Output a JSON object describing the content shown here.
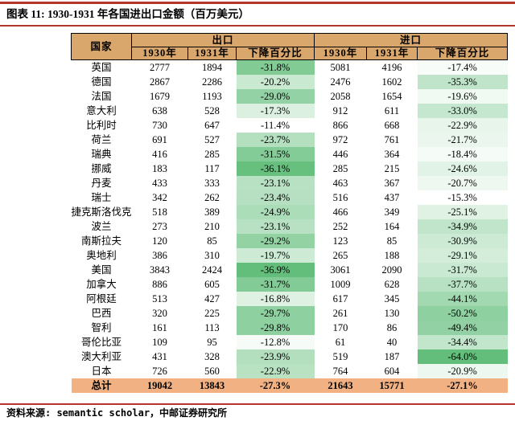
{
  "title": "图表 11: 1930-1931 年各国进出口金额（百万美元）",
  "source": "资料来源: semantic scholar，中邮证券研究所",
  "chart_data": {
    "type": "table",
    "title": "1930-1931 年各国进出口金额（百万美元）",
    "country_header": "国家",
    "group_headers": {
      "export": "出口",
      "import": "进口"
    },
    "sub_headers": [
      "1930年",
      "1931年",
      "下降百分比"
    ],
    "rows": [
      {
        "country": "英国",
        "export_1930": 2777,
        "export_1931": 1894,
        "export_pct": "-31.8%",
        "import_1930": 5081,
        "import_1931": 4196,
        "import_pct": "-17.4%"
      },
      {
        "country": "德国",
        "export_1930": 2867,
        "export_1931": 2286,
        "export_pct": "-20.2%",
        "import_1930": 2476,
        "import_1931": 1602,
        "import_pct": "-35.3%"
      },
      {
        "country": "法国",
        "export_1930": 1679,
        "export_1931": 1193,
        "export_pct": "-29.0%",
        "import_1930": 2058,
        "import_1931": 1654,
        "import_pct": "-19.6%"
      },
      {
        "country": "意大利",
        "export_1930": 638,
        "export_1931": 528,
        "export_pct": "-17.3%",
        "import_1930": 912,
        "import_1931": 611,
        "import_pct": "-33.0%"
      },
      {
        "country": "比利时",
        "export_1930": 730,
        "export_1931": 647,
        "export_pct": "-11.4%",
        "import_1930": 866,
        "import_1931": 668,
        "import_pct": "-22.9%"
      },
      {
        "country": "荷兰",
        "export_1930": 691,
        "export_1931": 527,
        "export_pct": "-23.7%",
        "import_1930": 972,
        "import_1931": 761,
        "import_pct": "-21.7%"
      },
      {
        "country": "瑞典",
        "export_1930": 416,
        "export_1931": 285,
        "export_pct": "-31.5%",
        "import_1930": 446,
        "import_1931": 364,
        "import_pct": "-18.4%"
      },
      {
        "country": "挪威",
        "export_1930": 183,
        "export_1931": 117,
        "export_pct": "-36.1%",
        "import_1930": 285,
        "import_1931": 215,
        "import_pct": "-24.6%"
      },
      {
        "country": "丹麦",
        "export_1930": 433,
        "export_1931": 333,
        "export_pct": "-23.1%",
        "import_1930": 463,
        "import_1931": 367,
        "import_pct": "-20.7%"
      },
      {
        "country": "瑞士",
        "export_1930": 342,
        "export_1931": 262,
        "export_pct": "-23.4%",
        "import_1930": 516,
        "import_1931": 437,
        "import_pct": "-15.3%"
      },
      {
        "country": "捷克斯洛伐克",
        "export_1930": 518,
        "export_1931": 389,
        "export_pct": "-24.9%",
        "import_1930": 466,
        "import_1931": 349,
        "import_pct": "-25.1%"
      },
      {
        "country": "波兰",
        "export_1930": 273,
        "export_1931": 210,
        "export_pct": "-23.1%",
        "import_1930": 252,
        "import_1931": 164,
        "import_pct": "-34.9%"
      },
      {
        "country": "南斯拉夫",
        "export_1930": 120,
        "export_1931": 85,
        "export_pct": "-29.2%",
        "import_1930": 123,
        "import_1931": 85,
        "import_pct": "-30.9%"
      },
      {
        "country": "奥地利",
        "export_1930": 386,
        "export_1931": 310,
        "export_pct": "-19.7%",
        "import_1930": 265,
        "import_1931": 188,
        "import_pct": "-29.1%"
      },
      {
        "country": "美国",
        "export_1930": 3843,
        "export_1931": 2424,
        "export_pct": "-36.9%",
        "import_1930": 3061,
        "import_1931": 2090,
        "import_pct": "-31.7%"
      },
      {
        "country": "加拿大",
        "export_1930": 886,
        "export_1931": 605,
        "export_pct": "-31.7%",
        "import_1930": 1009,
        "import_1931": 628,
        "import_pct": "-37.7%"
      },
      {
        "country": "阿根廷",
        "export_1930": 513,
        "export_1931": 427,
        "export_pct": "-16.8%",
        "import_1930": 617,
        "import_1931": 345,
        "import_pct": "-44.1%"
      },
      {
        "country": "巴西",
        "export_1930": 320,
        "export_1931": 225,
        "export_pct": "-29.7%",
        "import_1930": 261,
        "import_1931": 130,
        "import_pct": "-50.2%"
      },
      {
        "country": "智利",
        "export_1930": 161,
        "export_1931": 113,
        "export_pct": "-29.8%",
        "import_1930": 170,
        "import_1931": 86,
        "import_pct": "-49.4%"
      },
      {
        "country": "哥伦比亚",
        "export_1930": 109,
        "export_1931": 95,
        "export_pct": "-12.8%",
        "import_1930": 61,
        "import_1931": 40,
        "import_pct": "-34.4%"
      },
      {
        "country": "澳大利亚",
        "export_1930": 431,
        "export_1931": 328,
        "export_pct": "-23.9%",
        "import_1930": 519,
        "import_1931": 187,
        "import_pct": "-64.0%"
      },
      {
        "country": "日本",
        "export_1930": 726,
        "export_1931": 560,
        "export_pct": "-22.9%",
        "import_1930": 764,
        "import_1931": 604,
        "import_pct": "-20.9%"
      }
    ],
    "total": {
      "country": "总计",
      "export_1930": 19042,
      "export_1931": 13843,
      "export_pct": "-27.3%",
      "import_1930": 21643,
      "import_1931": 15771,
      "import_pct": "-27.1%"
    }
  },
  "colors": {
    "rule_red": "#b5342c",
    "header_bg": "#d9a76c",
    "total_row_bg": "#f1b183",
    "pct_scale_low": "#ffffff",
    "pct_scale_high": "#63be7b",
    "border": "#000000"
  }
}
